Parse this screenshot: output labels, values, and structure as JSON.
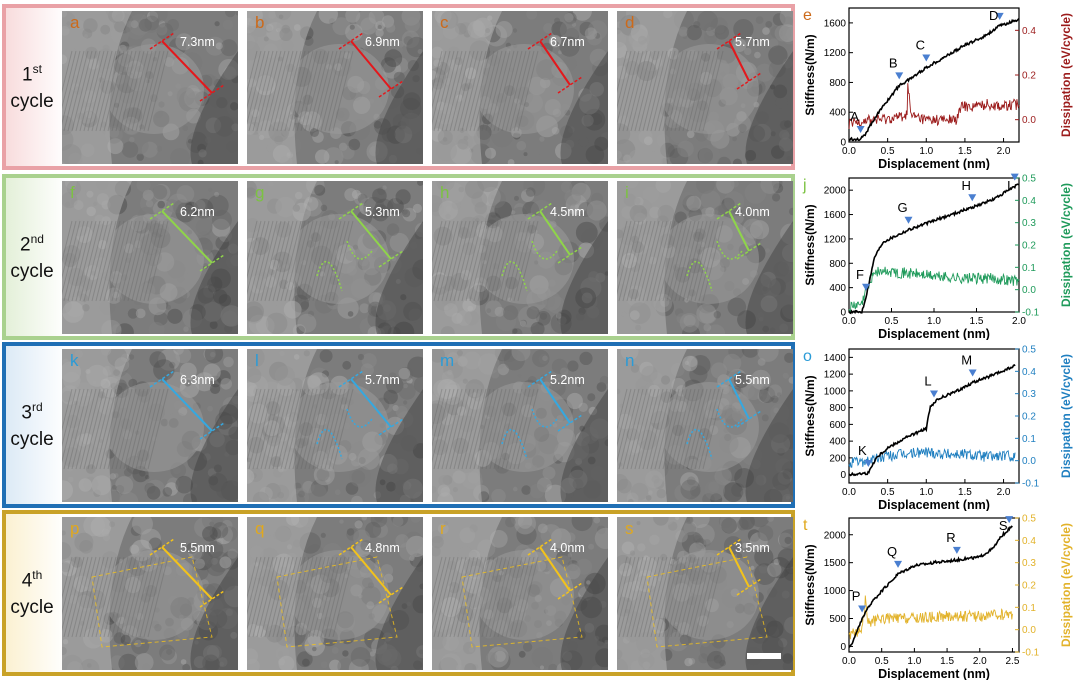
{
  "cycles": [
    {
      "id": "cycle1",
      "number": "1",
      "ordinal": "st",
      "word": "cycle",
      "border_color": "#e9a1a6",
      "bg_color": "#f8dcdd",
      "text_color": "#111111",
      "accent": "#e3181c",
      "letter_color": "#cc6a1a",
      "panels": [
        {
          "letter": "a",
          "measurement": "7.3nm"
        },
        {
          "letter": "b",
          "measurement": "6.9nm"
        },
        {
          "letter": "c",
          "measurement": "6.7nm"
        },
        {
          "letter": "d",
          "measurement": "5.7nm"
        }
      ],
      "plot": {
        "letter": "e",
        "letter_color": "#cc6a1a",
        "dissipation_color": "#9b1b1b",
        "ylabel_left": "Stiffness(N/m)",
        "ylabel_right": "Dissipation (eV/cycle)",
        "xlabel": "Displacement (nm)",
        "x_ticks": [
          "0.0",
          "0.5",
          "1.0",
          "1.5",
          "2.0"
        ],
        "y_left_ticks": [
          "0",
          "400",
          "800",
          "1200",
          "1600"
        ],
        "y_right_ticks": [
          "0.0",
          "0.2",
          "0.4"
        ],
        "annotations": [
          {
            "label": "A",
            "x": 0.15
          },
          {
            "label": "B",
            "x": 0.65
          },
          {
            "label": "C",
            "x": 1.0
          },
          {
            "label": "D",
            "x": 1.95
          }
        ]
      }
    },
    {
      "id": "cycle2",
      "number": "2",
      "ordinal": "nd",
      "word": "cycle",
      "border_color": "#a9d18e",
      "bg_color": "#e4f0d9",
      "text_color": "#111111",
      "accent": "#8fd44a",
      "letter_color": "#7cc242",
      "panels": [
        {
          "letter": "f",
          "measurement": "6.2nm"
        },
        {
          "letter": "g",
          "measurement": "5.3nm"
        },
        {
          "letter": "h",
          "measurement": "4.5nm"
        },
        {
          "letter": "i",
          "measurement": "4.0nm"
        }
      ],
      "plot": {
        "letter": "j",
        "letter_color": "#7cc242",
        "dissipation_color": "#1e9a5a",
        "ylabel_left": "Stiffness(N/m)",
        "ylabel_right": "Dissipation (eV/cycle)",
        "xlabel": "Displacement (nm)",
        "x_ticks": [
          "0.0",
          "0.5",
          "1.0",
          "1.5",
          "2.0"
        ],
        "y_left_ticks": [
          "0",
          "400",
          "800",
          "1200",
          "1600",
          "2000"
        ],
        "y_right_ticks": [
          "-0.1",
          "0.0",
          "0.1",
          "0.2",
          "0.3",
          "0.4",
          "0.5"
        ],
        "annotations": [
          {
            "label": "F",
            "x": 0.2
          },
          {
            "label": "G",
            "x": 0.7
          },
          {
            "label": "H",
            "x": 1.45
          },
          {
            "label": "I",
            "x": 1.95
          }
        ]
      }
    },
    {
      "id": "cycle3",
      "number": "3",
      "ordinal": "rd",
      "word": "cycle",
      "border_color": "#1f6fb5",
      "bg_color": "#dceaf6",
      "text_color": "#111111",
      "accent": "#35a8e0",
      "letter_color": "#2a9bd7",
      "panels": [
        {
          "letter": "k",
          "measurement": "6.3nm"
        },
        {
          "letter": "l",
          "measurement": "5.7nm"
        },
        {
          "letter": "m",
          "measurement": "5.2nm"
        },
        {
          "letter": "n",
          "measurement": "5.5nm"
        }
      ],
      "plot": {
        "letter": "o",
        "letter_color": "#2a9bd7",
        "dissipation_color": "#1f7fc0",
        "ylabel_left": "Stiffness(N/m)",
        "ylabel_right": "Dissipation (eV/cycle)",
        "xlabel": "Displacement (nm)",
        "x_ticks": [
          "0.0",
          "0.5",
          "1.0",
          "1.5",
          "2.0"
        ],
        "y_left_ticks": [
          "0",
          "200",
          "400",
          "600",
          "800",
          "1000",
          "1200",
          "1400"
        ],
        "y_right_ticks": [
          "-0.1",
          "0.0",
          "0.1",
          "0.2",
          "0.3",
          "0.4",
          "0.5"
        ],
        "annotations": [
          {
            "label": "K",
            "x": 0.25
          },
          {
            "label": "L",
            "x": 1.1
          },
          {
            "label": "M",
            "x": 1.6
          }
        ]
      }
    },
    {
      "id": "cycle4",
      "number": "4",
      "ordinal": "th",
      "word": "cycle",
      "border_color": "#c9a227",
      "bg_color": "#fbf1d2",
      "text_color": "#111111",
      "accent": "#f2c21b",
      "letter_color": "#e0a81e",
      "panels": [
        {
          "letter": "p",
          "measurement": "5.5nm"
        },
        {
          "letter": "q",
          "measurement": "4.8nm"
        },
        {
          "letter": "r",
          "measurement": "4.0nm"
        },
        {
          "letter": "s",
          "measurement": "3.5nm"
        }
      ],
      "plot": {
        "letter": "t",
        "letter_color": "#e0a81e",
        "dissipation_color": "#e2b22a",
        "ylabel_left": "Stiffness(N/m)",
        "ylabel_right": "Dissipation (eV/cycle)",
        "xlabel": "Displacement (nm)",
        "x_ticks": [
          "0.0",
          "0.5",
          "1.0",
          "1.5",
          "2.0",
          "2.5"
        ],
        "y_left_ticks": [
          "0",
          "500",
          "1000",
          "1500",
          "2000"
        ],
        "y_right_ticks": [
          "-0.1",
          "0.0",
          "0.1",
          "0.2",
          "0.3",
          "0.4",
          "0.5"
        ],
        "annotations": [
          {
            "label": "P",
            "x": 0.2
          },
          {
            "label": "Q",
            "x": 0.75
          },
          {
            "label": "R",
            "x": 1.65
          },
          {
            "label": "S",
            "x": 2.45
          }
        ]
      }
    }
  ],
  "chart_data": [
    {
      "type": "line",
      "panel": "e",
      "xlabel": "Displacement (nm)",
      "ylabel": "Stiffness(N/m)",
      "y2label": "Dissipation (eV/cycle)",
      "xlim": [
        0,
        2.2
      ],
      "ylim": [
        0,
        1800
      ],
      "y2lim": [
        -0.1,
        0.5
      ],
      "series": [
        {
          "axis": "left",
          "x": [
            0,
            0.15,
            0.2,
            0.35,
            0.5,
            0.65,
            0.75,
            1.0,
            1.25,
            1.5,
            1.75,
            1.95,
            2.2
          ],
          "values": [
            40,
            40,
            90,
            350,
            560,
            760,
            820,
            1000,
            1150,
            1300,
            1420,
            1560,
            1650
          ]
        },
        {
          "axis": "right",
          "x": [
            0,
            0.2,
            0.4,
            0.6,
            0.75,
            0.76,
            0.8,
            1.0,
            1.2,
            1.4,
            1.45,
            1.6,
            1.8,
            2.0,
            2.2
          ],
          "values": [
            -0.02,
            0.0,
            0.0,
            0.01,
            0.02,
            0.17,
            0.02,
            0.0,
            0.0,
            0.0,
            0.06,
            0.06,
            0.07,
            0.06,
            0.07
          ]
        }
      ]
    },
    {
      "type": "line",
      "panel": "j",
      "xlabel": "Displacement (nm)",
      "ylabel": "Stiffness(N/m)",
      "y2label": "Dissipation (eV/cycle)",
      "xlim": [
        0,
        2.0
      ],
      "ylim": [
        0,
        2200
      ],
      "y2lim": [
        -0.1,
        0.5
      ],
      "series": [
        {
          "axis": "left",
          "x": [
            0,
            0.15,
            0.2,
            0.3,
            0.4,
            0.7,
            1.0,
            1.45,
            1.7,
            2.0
          ],
          "values": [
            0,
            0,
            250,
            900,
            1150,
            1350,
            1500,
            1720,
            1850,
            2100
          ]
        },
        {
          "axis": "right",
          "x": [
            0,
            0.15,
            0.2,
            0.3,
            0.5,
            0.8,
            1.0,
            1.4,
            1.7,
            2.0
          ],
          "values": [
            -0.08,
            -0.07,
            0.0,
            0.08,
            0.08,
            0.07,
            0.06,
            0.05,
            0.05,
            0.04
          ]
        }
      ]
    },
    {
      "type": "line",
      "panel": "o",
      "xlabel": "Displacement (nm)",
      "ylabel": "Stiffness(N/m)",
      "y2label": "Dissipation (eV/cycle)",
      "xlim": [
        0,
        2.2
      ],
      "ylim": [
        -100,
        1500
      ],
      "y2lim": [
        -0.1,
        0.5
      ],
      "series": [
        {
          "axis": "left",
          "x": [
            0,
            0.25,
            0.35,
            0.5,
            0.75,
            1.0,
            1.05,
            1.15,
            1.4,
            1.6,
            1.9,
            2.15
          ],
          "values": [
            0,
            20,
            200,
            320,
            450,
            550,
            800,
            900,
            1000,
            1100,
            1200,
            1300
          ]
        },
        {
          "axis": "right",
          "x": [
            0,
            0.25,
            0.5,
            0.75,
            1.0,
            1.25,
            1.5,
            1.75,
            2.0,
            2.15
          ],
          "values": [
            -0.01,
            0.0,
            0.02,
            0.03,
            0.04,
            0.03,
            0.03,
            0.02,
            0.02,
            0.02
          ]
        }
      ]
    },
    {
      "type": "line",
      "panel": "t",
      "xlabel": "Displacement (nm)",
      "ylabel": "Stiffness(N/m)",
      "y2label": "Dissipation (eV/cycle)",
      "xlim": [
        0,
        2.6
      ],
      "ylim": [
        -100,
        2300
      ],
      "y2lim": [
        -0.1,
        0.5
      ],
      "series": [
        {
          "axis": "left",
          "x": [
            0,
            0.05,
            0.2,
            0.35,
            0.75,
            1.0,
            1.3,
            1.65,
            2.0,
            2.2,
            2.35,
            2.5
          ],
          "values": [
            0,
            50,
            500,
            800,
            1300,
            1450,
            1500,
            1550,
            1600,
            1750,
            2000,
            2150
          ]
        },
        {
          "axis": "right",
          "x": [
            0,
            0.2,
            0.25,
            0.3,
            0.5,
            1.0,
            1.5,
            2.0,
            2.5
          ],
          "values": [
            -0.02,
            0.0,
            0.13,
            0.03,
            0.05,
            0.05,
            0.06,
            0.06,
            0.07
          ]
        }
      ]
    }
  ]
}
